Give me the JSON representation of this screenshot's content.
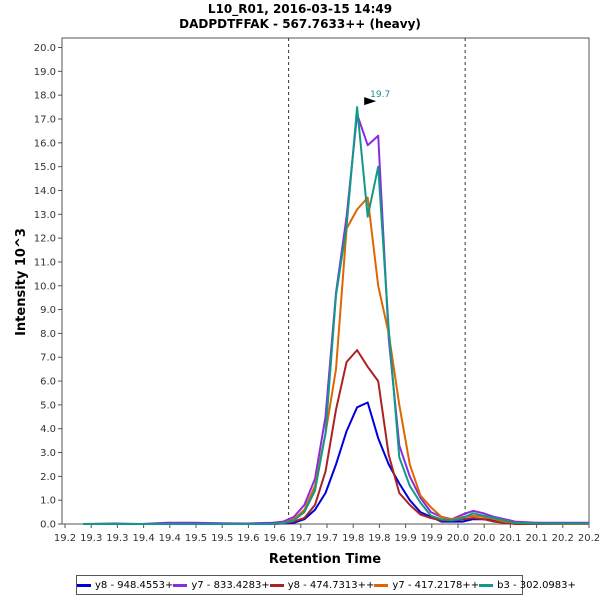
{
  "chart_data": {
    "type": "line",
    "title": "L10_R01, 2016-03-15 14:49",
    "subtitle": "DADPDTFFAK - 567.7633++ (heavy)",
    "xlabel": "Retention Time",
    "ylabel": "Intensity 10^3",
    "xlim": [
      19.2,
      20.2
    ],
    "ylim": [
      0,
      20.4
    ],
    "x_tick_labels": [
      "19.2",
      "19.3",
      "19.3",
      "19.4",
      "19.4",
      "19.5",
      "19.5",
      "19.6",
      "19.6",
      "19.7",
      "19.7",
      "19.8",
      "19.8",
      "19.9",
      "19.9",
      "20.0",
      "20.0",
      "20.1",
      "20.1",
      "20.2",
      "20.2"
    ],
    "y_ticks": [
      "0.0",
      "1.0",
      "2.0",
      "3.0",
      "4.0",
      "5.0",
      "6.0",
      "7.0",
      "8.0",
      "9.0",
      "10.0",
      "11.0",
      "12.0",
      "13.0",
      "14.0",
      "15.0",
      "16.0",
      "17.0",
      "18.0",
      "19.0",
      "20.0"
    ],
    "vlines": [
      19.63,
      19.965
    ],
    "annotation": {
      "label": "19.7",
      "x": 19.8,
      "y": 17.75
    },
    "x": [
      19.24,
      19.3,
      19.35,
      19.4,
      19.45,
      19.5,
      19.55,
      19.6,
      19.62,
      19.64,
      19.66,
      19.68,
      19.7,
      19.72,
      19.74,
      19.76,
      19.78,
      19.8,
      19.82,
      19.84,
      19.86,
      19.88,
      19.9,
      19.92,
      19.94,
      19.96,
      19.98,
      20.0,
      20.02,
      20.04,
      20.06,
      20.1,
      20.15,
      20.2
    ],
    "series": [
      {
        "name": "y8 - 948.4553+",
        "color": "#0000dd",
        "values": [
          0,
          0,
          0,
          0,
          0,
          0,
          0,
          0,
          0.02,
          0.05,
          0.2,
          0.6,
          1.3,
          2.5,
          3.9,
          4.9,
          5.1,
          3.6,
          2.5,
          1.7,
          1.0,
          0.5,
          0.3,
          0.1,
          0.1,
          0.1,
          0.2,
          0.2,
          0.15,
          0.1,
          0.05,
          0,
          0,
          0
        ]
      },
      {
        "name": "y7 - 833.4283+",
        "color": "#8a2be2",
        "values": [
          0,
          0.02,
          0,
          0.05,
          0.05,
          0.03,
          0.02,
          0.05,
          0.1,
          0.3,
          0.8,
          1.9,
          4.5,
          9.7,
          12.9,
          17.2,
          15.9,
          16.3,
          7.8,
          3.3,
          2.0,
          1.1,
          0.5,
          0.3,
          0.2,
          0.4,
          0.55,
          0.45,
          0.3,
          0.2,
          0.1,
          0.05,
          0.05,
          0.05
        ]
      },
      {
        "name": "y8 - 474.7313++",
        "color": "#aa2222",
        "values": [
          0,
          0,
          0,
          0,
          0,
          0,
          0,
          0,
          0.03,
          0.1,
          0.25,
          0.8,
          2.2,
          4.8,
          6.8,
          7.3,
          6.6,
          6.0,
          2.9,
          1.3,
          0.8,
          0.4,
          0.25,
          0.15,
          0.15,
          0.2,
          0.25,
          0.2,
          0.1,
          0.05,
          0,
          0,
          0,
          0
        ]
      },
      {
        "name": "y7 - 417.2178++",
        "color": "#dd6600",
        "values": [
          0,
          0,
          0,
          0,
          0,
          0,
          0,
          0,
          0.05,
          0.2,
          0.6,
          1.6,
          3.8,
          6.5,
          12.4,
          13.2,
          13.7,
          10.0,
          8.0,
          5.0,
          2.5,
          1.2,
          0.7,
          0.3,
          0.2,
          0.3,
          0.35,
          0.3,
          0.2,
          0.1,
          0.05,
          0.02,
          0,
          0
        ]
      },
      {
        "name": "b3 - 302.0983+",
        "color": "#119988",
        "values": [
          0,
          0,
          0,
          0,
          0,
          0,
          0,
          0,
          0.04,
          0.15,
          0.5,
          1.4,
          3.8,
          9.6,
          12.5,
          17.5,
          12.9,
          15.0,
          8.2,
          2.8,
          1.6,
          0.9,
          0.35,
          0.2,
          0.15,
          0.25,
          0.45,
          0.35,
          0.25,
          0.15,
          0.05,
          0.02,
          0.02,
          0.02
        ]
      }
    ]
  }
}
